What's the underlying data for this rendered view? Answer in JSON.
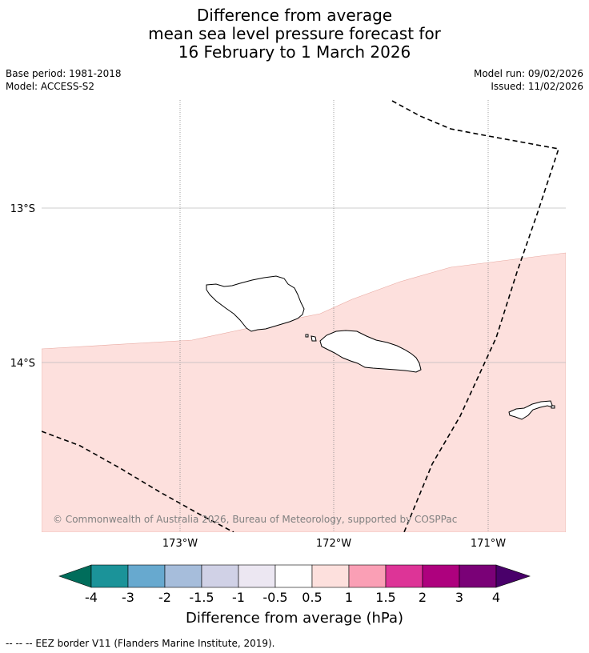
{
  "title": {
    "line1": "Difference from average",
    "line2": "mean sea level pressure forecast for",
    "line3": "16 February to 1 March 2026"
  },
  "meta": {
    "base_period": "Base period: 1981-2018",
    "model": "Model: ACCESS-S2",
    "model_run": "Model run: 09/02/2026",
    "issued": "Issued: 11/02/2026"
  },
  "map": {
    "lat_labels": [
      "13°S",
      "14°S"
    ],
    "lon_labels": [
      "173°W",
      "172°W",
      "171°W"
    ],
    "copyright": "© Commonwealth of Australia 2026, Bureau of Meteorology, supported by COSPPac",
    "shading_color": "#fde0dd",
    "shading_category": "0.5 to 1"
  },
  "colorbar": {
    "label": "Difference from average (hPa)",
    "ticks": [
      "-4",
      "-3",
      "-2",
      "-1.5",
      "-1",
      "-0.5",
      "0.5",
      "1",
      "1.5",
      "2",
      "3",
      "4"
    ],
    "colors": [
      "#006d5b",
      "#1b9399",
      "#67a9cf",
      "#a6bddb",
      "#d0d1e6",
      "#ece7f2",
      "#ffffff",
      "#fde0dd",
      "#fa9fb5",
      "#dd3497",
      "#ae017e",
      "#7a0177",
      "#49006a"
    ]
  },
  "footer": {
    "legend": "-- -- -- EEZ border V11 (Flanders Marine Institute, 2019)."
  }
}
